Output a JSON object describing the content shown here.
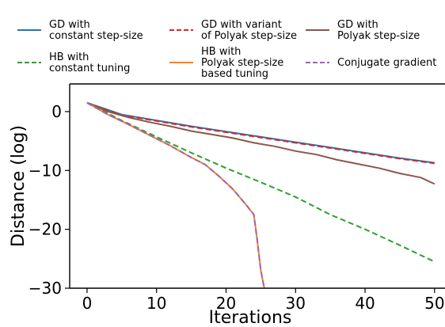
{
  "chart_data": {
    "type": "line",
    "title": "",
    "xlabel": "Iterations",
    "ylabel": "Distance (log)",
    "xlim": [
      -2.5,
      51.5
    ],
    "ylim": [
      -30,
      4.7
    ],
    "xticks": [
      0,
      10,
      20,
      30,
      40,
      50
    ],
    "yticks": [
      0,
      -10,
      -20,
      -30
    ],
    "grid": false,
    "legend": {
      "placement": "top",
      "columns": 3
    },
    "series": [
      {
        "name": "GD with\nconstant step-size",
        "color": "#1f77b4",
        "style": "solid",
        "x": [
          0,
          5,
          10,
          15,
          20,
          25,
          30,
          35,
          40,
          45,
          50
        ],
        "y": [
          1.5,
          -0.5,
          -1.5,
          -2.5,
          -3.4,
          -4.3,
          -5.2,
          -6.1,
          -7.0,
          -7.9,
          -8.7
        ]
      },
      {
        "name": "GD with variant\nof Polyak step-size",
        "color": "#d62728",
        "style": "dashed",
        "x": [
          0,
          5,
          10,
          15,
          20,
          25,
          30,
          35,
          40,
          45,
          50
        ],
        "y": [
          1.5,
          -0.6,
          -1.6,
          -2.6,
          -3.5,
          -4.4,
          -5.3,
          -6.2,
          -7.1,
          -8.0,
          -8.8
        ]
      },
      {
        "name": "GD with\nPolyak step-size",
        "color": "#8c564b",
        "style": "solid",
        "x": [
          0,
          3,
          6,
          9,
          12,
          15,
          18,
          21,
          24,
          27,
          30,
          33,
          36,
          39,
          42,
          45,
          48,
          50
        ],
        "y": [
          1.5,
          0.0,
          -1.0,
          -1.8,
          -2.5,
          -3.3,
          -3.9,
          -4.5,
          -5.3,
          -5.9,
          -6.7,
          -7.3,
          -8.2,
          -8.9,
          -9.6,
          -10.5,
          -11.2,
          -12.3
        ]
      },
      {
        "name": "HB with\nconstant tuning",
        "color": "#2ca02c",
        "style": "dashed",
        "x": [
          0,
          5,
          10,
          15,
          20,
          25,
          30,
          35,
          40,
          45,
          50
        ],
        "y": [
          1.5,
          -1.5,
          -4.3,
          -7.0,
          -9.6,
          -12.0,
          -14.5,
          -17.5,
          -20.0,
          -22.7,
          -25.5
        ]
      },
      {
        "name": "HB with\nPolyak step-size\nbased tuning",
        "color": "#ff7f0e",
        "style": "solid",
        "x": [
          0,
          3,
          6,
          9,
          12,
          15,
          17,
          19,
          21,
          23,
          24,
          24.5,
          25,
          25.5
        ],
        "y": [
          1.5,
          -0.5,
          -2.2,
          -4.0,
          -5.8,
          -7.8,
          -9.0,
          -11.0,
          -13.2,
          -16.0,
          -17.5,
          -22.0,
          -27.0,
          -30.0
        ]
      },
      {
        "name": "Conjugate gradient",
        "color": "#9467bd",
        "style": "dashed",
        "x": [
          0,
          3,
          6,
          9,
          12,
          15,
          17,
          19,
          21,
          23,
          24,
          24.5,
          25,
          25.5
        ],
        "y": [
          1.5,
          -0.5,
          -2.2,
          -4.0,
          -5.8,
          -7.8,
          -9.0,
          -11.0,
          -13.2,
          -16.0,
          -17.5,
          -22.0,
          -27.0,
          -30.0
        ]
      }
    ]
  }
}
